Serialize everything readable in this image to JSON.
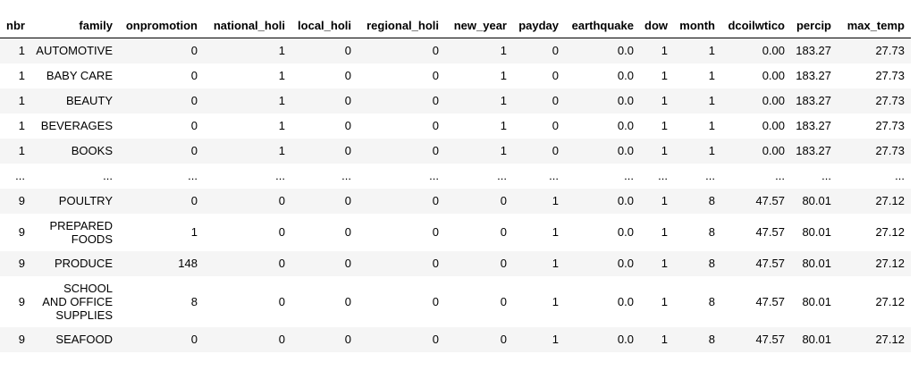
{
  "columns": [
    "nbr",
    "family",
    "onpromotion",
    "national_holi",
    "local_holi",
    "regional_holi",
    "new_year",
    "payday",
    "earthquake",
    "dow",
    "month",
    "dcoilwtico",
    "percip",
    "max_temp"
  ],
  "rows": [
    {
      "cells": [
        "1",
        "AUTOMOTIVE",
        "0",
        "1",
        "0",
        "0",
        "1",
        "0",
        "0.0",
        "1",
        "1",
        "0.00",
        "183.27",
        "27.73"
      ]
    },
    {
      "cells": [
        "1",
        "BABY CARE",
        "0",
        "1",
        "0",
        "0",
        "1",
        "0",
        "0.0",
        "1",
        "1",
        "0.00",
        "183.27",
        "27.73"
      ]
    },
    {
      "cells": [
        "1",
        "BEAUTY",
        "0",
        "1",
        "0",
        "0",
        "1",
        "0",
        "0.0",
        "1",
        "1",
        "0.00",
        "183.27",
        "27.73"
      ]
    },
    {
      "cells": [
        "1",
        "BEVERAGES",
        "0",
        "1",
        "0",
        "0",
        "1",
        "0",
        "0.0",
        "1",
        "1",
        "0.00",
        "183.27",
        "27.73"
      ]
    },
    {
      "cells": [
        "1",
        "BOOKS",
        "0",
        "1",
        "0",
        "0",
        "1",
        "0",
        "0.0",
        "1",
        "1",
        "0.00",
        "183.27",
        "27.73"
      ]
    },
    {
      "cells": [
        "...",
        "...",
        "...",
        "...",
        "...",
        "...",
        "...",
        "...",
        "...",
        "...",
        "...",
        "...",
        "...",
        "..."
      ]
    },
    {
      "cells": [
        "9",
        "POULTRY",
        "0",
        "0",
        "0",
        "0",
        "0",
        "1",
        "0.0",
        "1",
        "8",
        "47.57",
        "80.01",
        "27.12"
      ]
    },
    {
      "cells": [
        "9",
        "PREPARED FOODS",
        "1",
        "0",
        "0",
        "0",
        "0",
        "1",
        "0.0",
        "1",
        "8",
        "47.57",
        "80.01",
        "27.12"
      ]
    },
    {
      "cells": [
        "9",
        "PRODUCE",
        "148",
        "0",
        "0",
        "0",
        "0",
        "1",
        "0.0",
        "1",
        "8",
        "47.57",
        "80.01",
        "27.12"
      ]
    },
    {
      "cells": [
        "9",
        "SCHOOL AND OFFICE SUPPLIES",
        "8",
        "0",
        "0",
        "0",
        "0",
        "1",
        "0.0",
        "1",
        "8",
        "47.57",
        "80.01",
        "27.12"
      ]
    },
    {
      "cells": [
        "9",
        "SEAFOOD",
        "0",
        "0",
        "0",
        "0",
        "0",
        "1",
        "0.0",
        "1",
        "8",
        "47.57",
        "80.01",
        "27.12"
      ]
    }
  ]
}
